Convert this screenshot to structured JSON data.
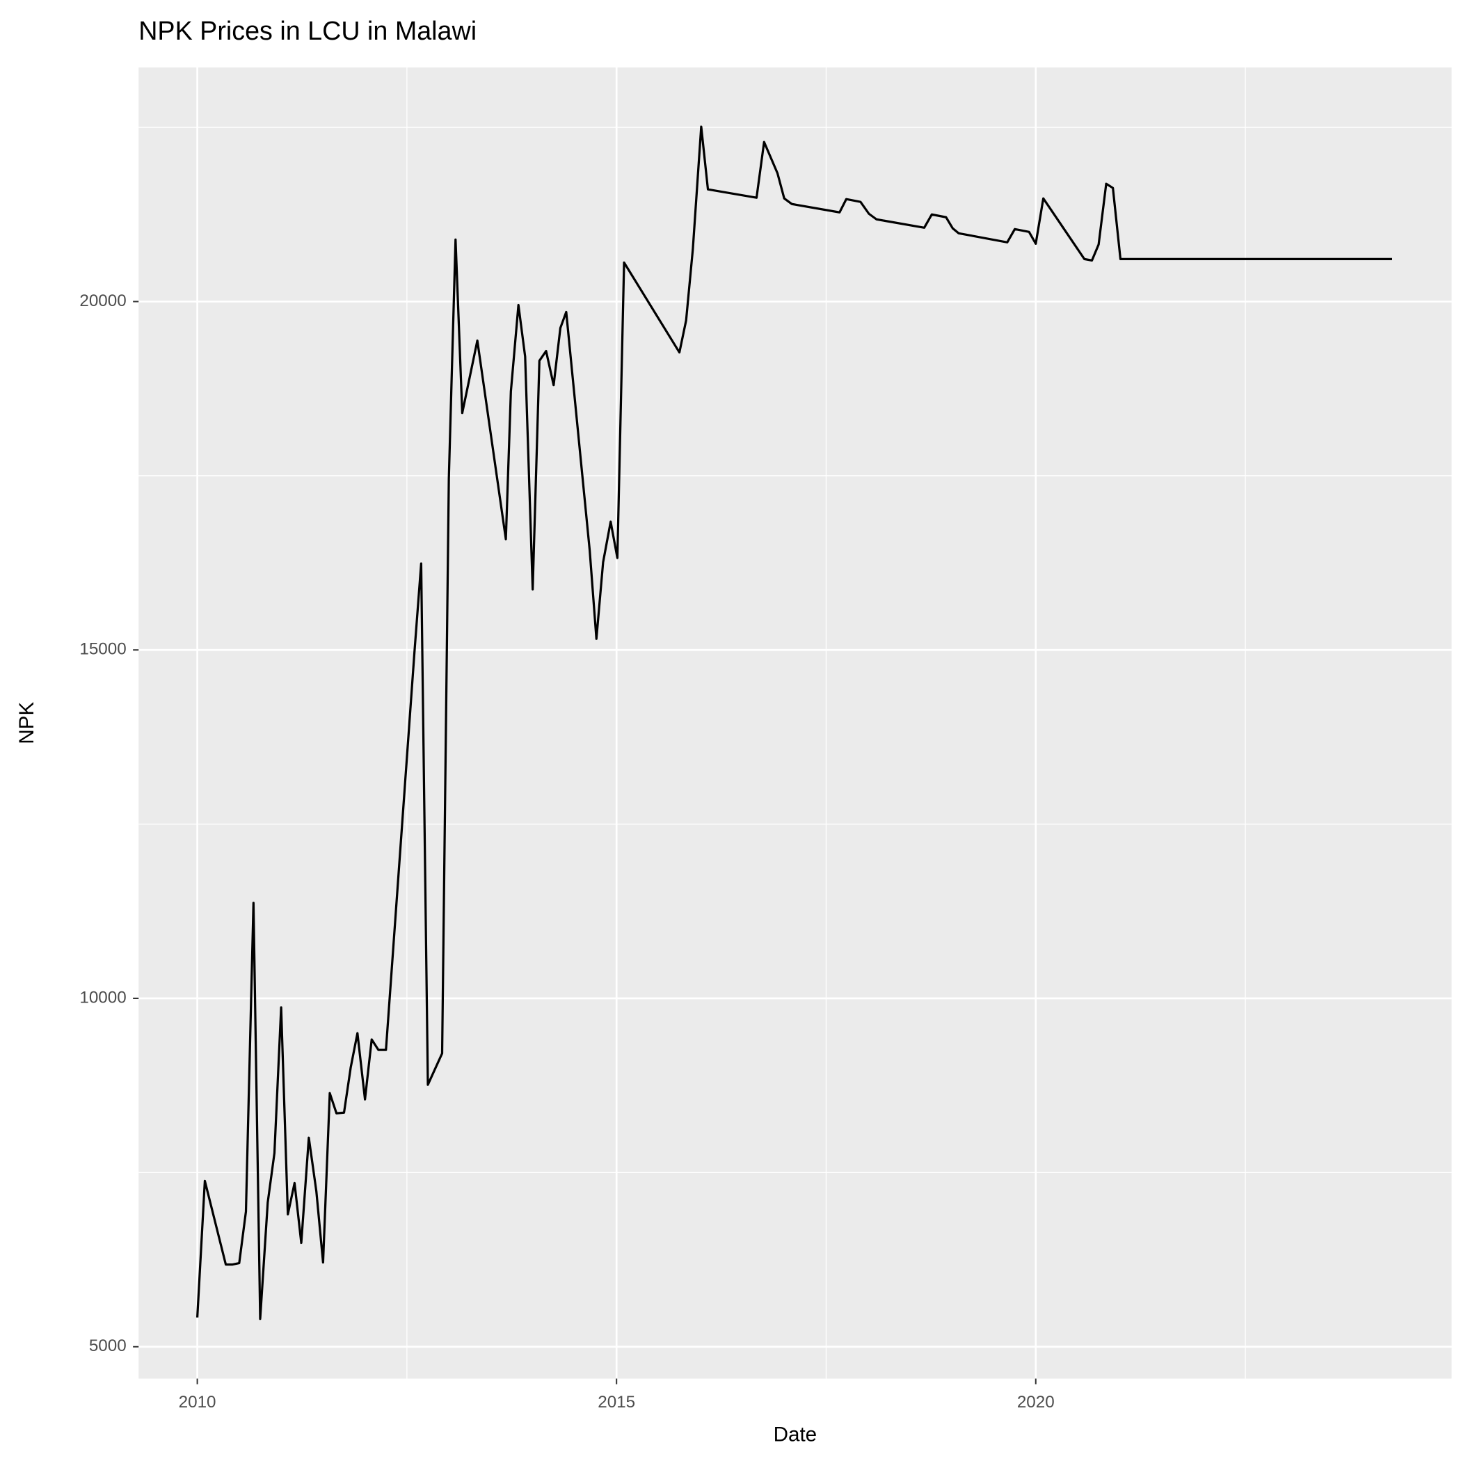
{
  "chart_data": {
    "type": "line",
    "title": "NPK Prices in LCU in Malawi",
    "x_label": "Date",
    "y_label": "NPK",
    "x": [
      2010.0,
      2010.09,
      2010.34,
      2010.42,
      2010.5,
      2010.58,
      2010.67,
      2010.75,
      2010.84,
      2010.92,
      2011.0,
      2011.08,
      2011.16,
      2011.24,
      2011.33,
      2011.42,
      2011.5,
      2011.58,
      2011.66,
      2011.75,
      2011.83,
      2011.91,
      2012.0,
      2012.08,
      2012.16,
      2012.25,
      2012.59,
      2012.67,
      2012.75,
      2012.92,
      2013.0,
      2013.08,
      2013.16,
      2013.34,
      2013.68,
      2013.74,
      2013.83,
      2013.91,
      2014.0,
      2014.08,
      2014.16,
      2014.25,
      2014.33,
      2014.4,
      2014.68,
      2014.76,
      2014.84,
      2014.93,
      2015.01,
      2015.09,
      2015.75,
      2015.83,
      2015.91,
      2016.01,
      2016.09,
      2016.67,
      2016.76,
      2016.92,
      2017.0,
      2017.09,
      2017.66,
      2017.74,
      2017.91,
      2018.01,
      2018.1,
      2018.67,
      2018.76,
      2018.93,
      2019.01,
      2019.08,
      2019.66,
      2019.75,
      2019.92,
      2020.0,
      2020.09,
      2020.58,
      2020.67,
      2020.75,
      2020.84,
      2020.92,
      2021.01,
      2024.25
    ],
    "values": [
      5420,
      7380,
      6180,
      6180,
      6200,
      6940,
      11370,
      5400,
      7070,
      7780,
      9870,
      6900,
      7350,
      6490,
      8000,
      7230,
      6210,
      8640,
      8350,
      8360,
      9010,
      9500,
      8550,
      9410,
      9260,
      9260,
      14970,
      16240,
      8760,
      9210,
      17460,
      20890,
      18400,
      19440,
      16590,
      18710,
      19950,
      19210,
      15870,
      19150,
      19290,
      18800,
      19620,
      19850,
      16430,
      15160,
      16260,
      16840,
      16320,
      20560,
      19270,
      19730,
      20750,
      22510,
      21610,
      21490,
      22290,
      21840,
      21480,
      21400,
      21280,
      21470,
      21430,
      21260,
      21180,
      21060,
      21250,
      21210,
      21050,
      20980,
      20850,
      21040,
      21000,
      20830,
      21480,
      20610,
      20590,
      20820,
      21690,
      21630,
      20610,
      20610
    ],
    "color": "#000000",
    "xlim": [
      2009.3,
      2024.96
    ],
    "ylim": [
      4543,
      23360
    ],
    "xticks": [
      2010,
      2015,
      2020
    ],
    "yticks": [
      5000,
      10000,
      15000,
      20000
    ],
    "xminor": [
      2012.5,
      2017.5,
      2022.5
    ],
    "yminor": [
      7500,
      12500,
      17500,
      22500
    ],
    "grid": true
  }
}
